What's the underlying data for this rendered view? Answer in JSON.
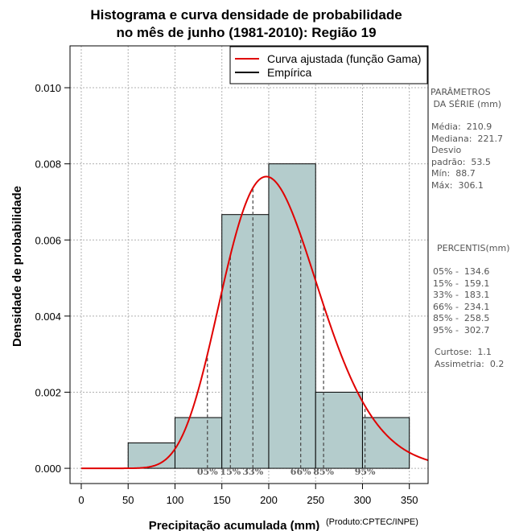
{
  "chart_data": {
    "type": "bar",
    "title_line1": "Histograma e curva densidade de probabilidade",
    "title_line2": "no mês de junho (1981-2010): Região 19",
    "xlabel": "Precipitação acumulada (mm)",
    "ylabel": "Densidade de probabilidade",
    "credit": "(Produto:CPTEC/INPE)",
    "xlim": [
      -12,
      370
    ],
    "ylim": [
      -0.0004,
      0.0111
    ],
    "x_ticks": [
      0,
      50,
      100,
      150,
      200,
      250,
      300,
      350
    ],
    "y_ticks": [
      0.0,
      0.002,
      0.004,
      0.006,
      0.008,
      0.01
    ],
    "y_tick_labels": [
      "0.000",
      "0.002",
      "0.004",
      "0.006",
      "0.008",
      "0.010"
    ],
    "bins": [
      {
        "from": 50,
        "to": 100,
        "density": 0.000667
      },
      {
        "from": 100,
        "to": 150,
        "density": 0.001333
      },
      {
        "from": 150,
        "to": 200,
        "density": 0.006667
      },
      {
        "from": 200,
        "to": 250,
        "density": 0.008
      },
      {
        "from": 250,
        "to": 300,
        "density": 0.002
      },
      {
        "from": 300,
        "to": 350,
        "density": 0.001333
      }
    ],
    "gamma_fit": {
      "mean": 210.9,
      "sd": 53.5
    },
    "legend": [
      {
        "label": "Curva ajustada (função Gama)",
        "color": "#e00000"
      },
      {
        "label": "Empírica",
        "color": "#000000"
      }
    ],
    "percentile_markers": [
      {
        "label": "05%",
        "value": 134.6
      },
      {
        "label": "15%",
        "value": 159.1
      },
      {
        "label": "33%",
        "value": 183.1
      },
      {
        "label": "66%",
        "value": 234.1
      },
      {
        "label": "85%",
        "value": 258.5
      },
      {
        "label": "95%",
        "value": 302.7
      }
    ],
    "colors": {
      "bar_fill": "#b4cccc",
      "curve": "#e00000",
      "grid": "#b0b0b0"
    }
  },
  "sidebar": {
    "params_heading": "PARÂMETROS\n DA SÉRIE (mm)",
    "params": "Média:  210.9\nMediana:  221.7\nDesvio\npadrão:  53.5\nMín:  88.7\nMáx:  306.1",
    "pct_heading": "PERCENTIS(mm)",
    "pct": "05% -  134.6\n15% -  159.1\n33% -  183.1\n66% -  234.1\n85% -  258.5\n95% -  302.7",
    "stats": "Curtose:  1.1\nAssimetria:  0.2"
  }
}
